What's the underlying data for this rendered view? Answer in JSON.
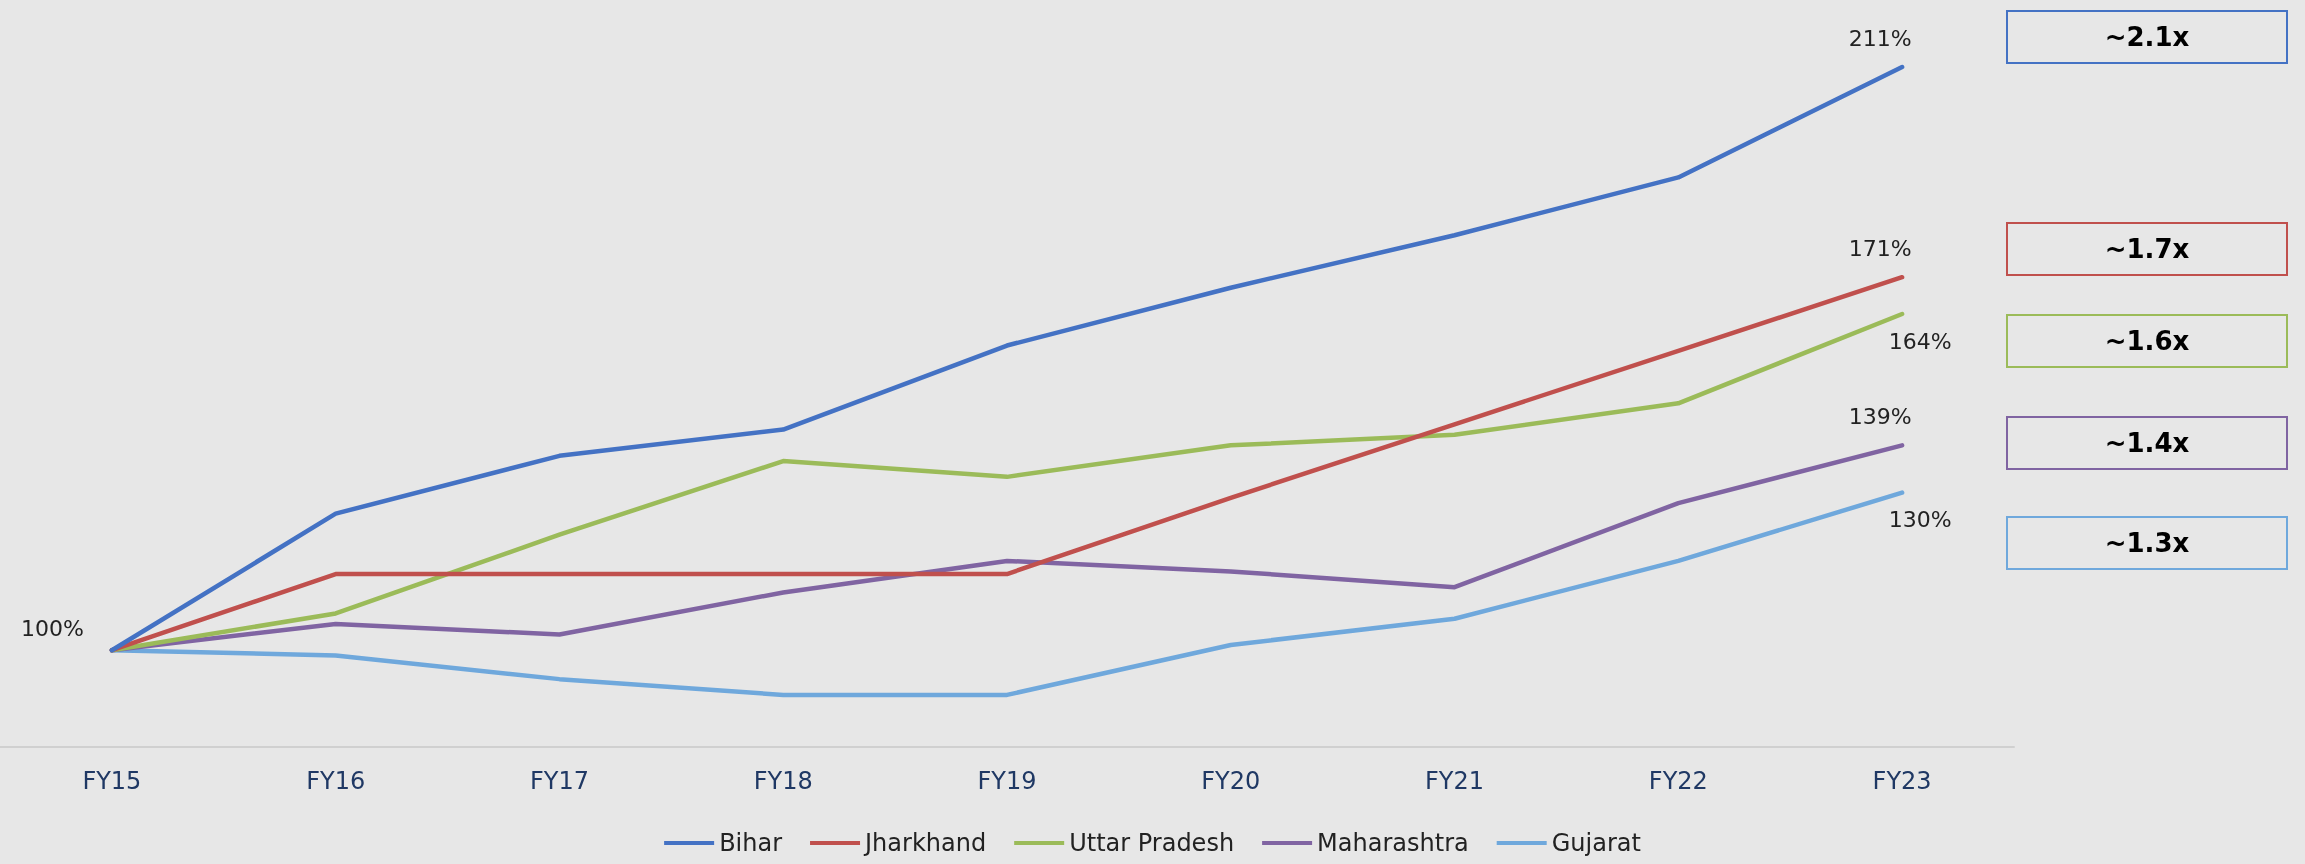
{
  "chart_data": {
    "type": "line",
    "categories": [
      "FY15",
      "FY16",
      "FY17",
      "FY18",
      "FY19",
      "FY20",
      "FY21",
      "FY22",
      "FY23"
    ],
    "series": [
      {
        "name": "Bihar",
        "color": "#4472c4",
        "values": [
          100,
          126,
          137,
          142,
          158,
          169,
          179,
          190,
          211
        ],
        "value_labels": [
          "100%",
          null,
          null,
          null,
          null,
          null,
          null,
          null,
          "211%"
        ]
      },
      {
        "name": "Jharkhand",
        "color": "#c0504d",
        "values": [
          100,
          114.5,
          114.5,
          114.5,
          114.5,
          129,
          143,
          157,
          171
        ],
        "value_labels": [
          null,
          null,
          null,
          null,
          null,
          null,
          null,
          null,
          "171%"
        ]
      },
      {
        "name": "Uttar Pradesh",
        "color": "#9bbb59",
        "values": [
          100,
          107,
          122,
          136,
          133,
          139,
          141,
          147,
          164
        ],
        "value_labels": [
          null,
          null,
          null,
          null,
          null,
          null,
          null,
          null,
          "164%"
        ]
      },
      {
        "name": "Maharashtra",
        "color": "#8064a2",
        "values": [
          100,
          105,
          103,
          111,
          117,
          115,
          112,
          128,
          139
        ],
        "value_labels": [
          null,
          null,
          null,
          null,
          null,
          null,
          null,
          null,
          "139%"
        ]
      },
      {
        "name": "Gujarat",
        "color": "#6fa8dc",
        "values": [
          100,
          99,
          94.5,
          91.5,
          91.5,
          101,
          106,
          117,
          130
        ],
        "value_labels": [
          null,
          null,
          null,
          null,
          null,
          null,
          null,
          null,
          "130%"
        ]
      }
    ],
    "annotations": [
      "~2.1x",
      "~1.7x",
      "~1.6x",
      "~1.4x",
      "~1.3x"
    ],
    "tick_labels": "x",
    "grid": false,
    "legend": "bottom",
    "marker": "none",
    "line_style": "solid"
  }
}
